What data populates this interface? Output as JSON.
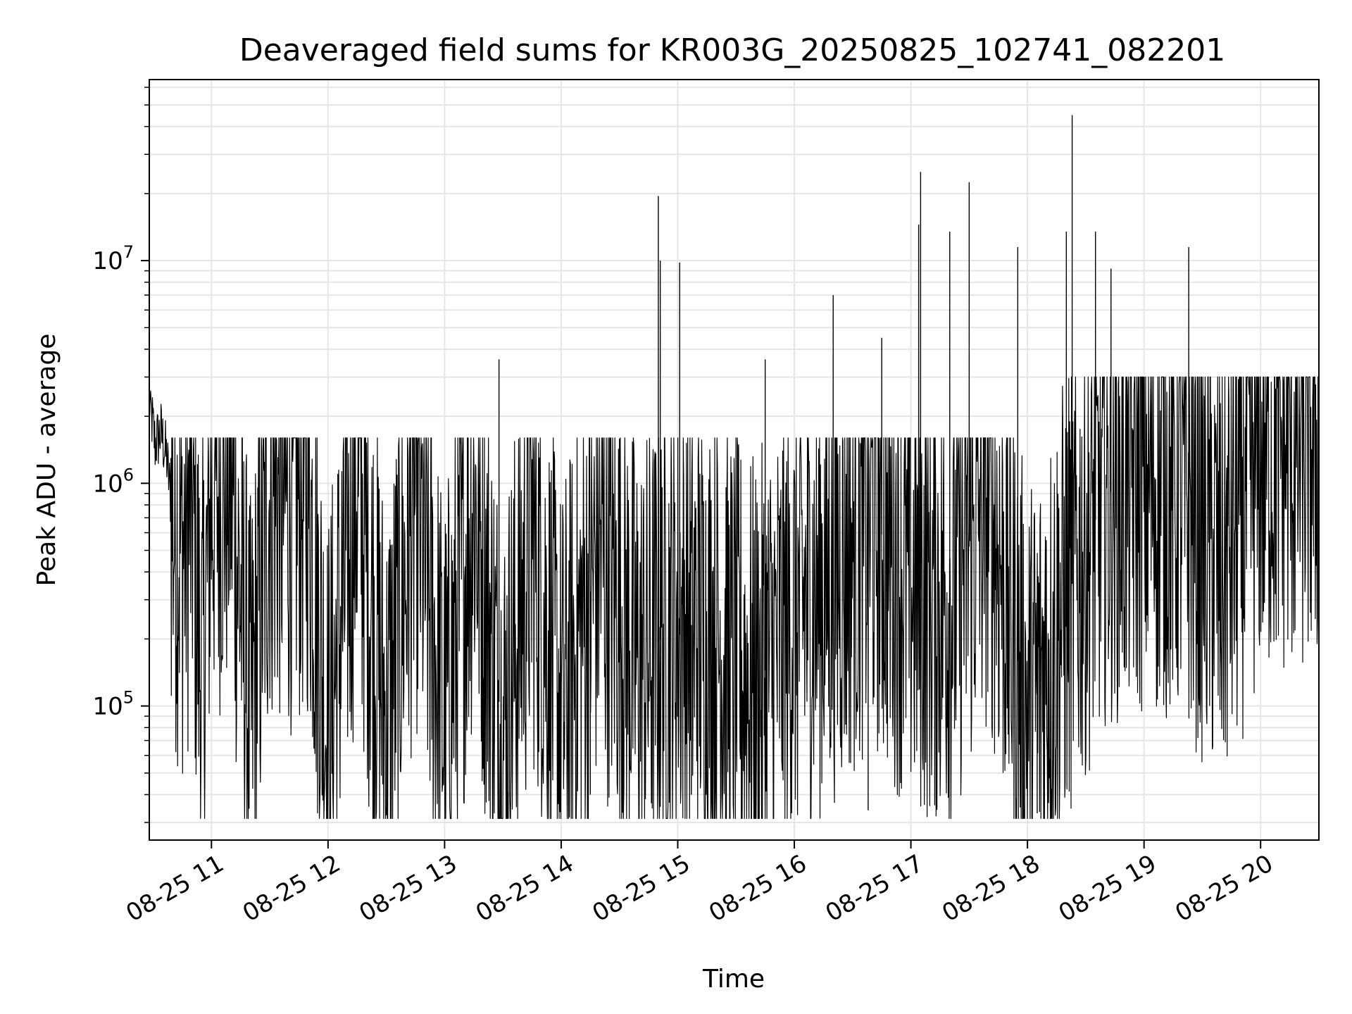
{
  "chart_data": {
    "type": "line",
    "title": "Deaveraged field sums for KR003G_20250825_102741_082201",
    "xlabel": "Time",
    "ylabel": "Peak ADU - average",
    "yscale": "log",
    "ylim": [
      25000,
      65000000
    ],
    "xlim": [
      "2025-08-25T10:28",
      "2025-08-25T20:30"
    ],
    "grid": true,
    "line_color": "#000000",
    "x_ticks": [
      {
        "x": "2025-08-25T11:00",
        "label": "08-25 11"
      },
      {
        "x": "2025-08-25T12:00",
        "label": "08-25 12"
      },
      {
        "x": "2025-08-25T13:00",
        "label": "08-25 13"
      },
      {
        "x": "2025-08-25T14:00",
        "label": "08-25 14"
      },
      {
        "x": "2025-08-25T15:00",
        "label": "08-25 15"
      },
      {
        "x": "2025-08-25T16:00",
        "label": "08-25 16"
      },
      {
        "x": "2025-08-25T17:00",
        "label": "08-25 17"
      },
      {
        "x": "2025-08-25T18:00",
        "label": "08-25 18"
      },
      {
        "x": "2025-08-25T19:00",
        "label": "08-25 19"
      },
      {
        "x": "2025-08-25T20:00",
        "label": "08-25 20"
      }
    ],
    "y_ticks": [
      {
        "value": 100000,
        "base": "10",
        "exp": "5"
      },
      {
        "value": 1000000,
        "base": "10",
        "exp": "6"
      },
      {
        "value": 10000000,
        "base": "10",
        "exp": "7"
      }
    ],
    "series": [
      {
        "values": [
          [
            "2025-08-25T10:28",
            2400000
          ],
          [
            "2025-08-25T10:31",
            1500000
          ],
          [
            "2025-08-25T10:34",
            1700000
          ],
          [
            "2025-08-25T10:37",
            1300000
          ],
          [
            "2025-08-25T10:40",
            700000
          ],
          [
            "2025-08-25T10:45",
            500000
          ],
          [
            "2025-08-25T10:50",
            800000
          ],
          [
            "2025-08-25T10:55",
            120000
          ],
          [
            "2025-08-25T11:00",
            900000
          ],
          [
            "2025-08-25T11:10",
            1100000
          ],
          [
            "2025-08-25T11:20",
            80000
          ],
          [
            "2025-08-25T11:30",
            900000
          ],
          [
            "2025-08-25T11:40",
            800000
          ],
          [
            "2025-08-25T11:50",
            950000
          ],
          [
            "2025-08-25T12:00",
            70000
          ],
          [
            "2025-08-25T12:15",
            1100000
          ],
          [
            "2025-08-25T12:30",
            80000
          ],
          [
            "2025-08-25T12:45",
            900000
          ],
          [
            "2025-08-25T13:00",
            80000
          ],
          [
            "2025-08-25T13:15",
            900000
          ],
          [
            "2025-08-25T13:30",
            75000
          ],
          [
            "2025-08-25T13:45",
            600000
          ],
          [
            "2025-08-25T14:00",
            90000
          ],
          [
            "2025-08-25T14:20",
            500000
          ],
          [
            "2025-08-25T14:40",
            150000
          ],
          [
            "2025-08-25T15:00",
            250000
          ],
          [
            "2025-08-25T15:20",
            200000
          ],
          [
            "2025-08-25T15:40",
            120000
          ],
          [
            "2025-08-25T16:00",
            250000
          ],
          [
            "2025-08-25T16:20",
            400000
          ],
          [
            "2025-08-25T16:40",
            700000
          ],
          [
            "2025-08-25T17:00",
            350000
          ],
          [
            "2025-08-25T17:20",
            300000
          ],
          [
            "2025-08-25T17:40",
            900000
          ],
          [
            "2025-08-25T18:00",
            90000
          ],
          [
            "2025-08-25T18:20",
            300000
          ],
          [
            "2025-08-25T18:40",
            900000
          ],
          [
            "2025-08-25T19:00",
            1000000
          ],
          [
            "2025-08-25T19:20",
            900000
          ],
          [
            "2025-08-25T19:40",
            400000
          ],
          [
            "2025-08-25T20:00",
            1400000
          ],
          [
            "2025-08-25T20:30",
            1500000
          ]
        ],
        "spikes": [
          [
            "2025-08-25T13:28",
            3600000
          ],
          [
            "2025-08-25T14:50",
            19500000
          ],
          [
            "2025-08-25T14:51",
            10000000
          ],
          [
            "2025-08-25T15:01",
            9800000
          ],
          [
            "2025-08-25T16:20",
            7000000
          ],
          [
            "2025-08-25T17:05",
            25000000
          ],
          [
            "2025-08-25T17:04",
            14500000
          ],
          [
            "2025-08-25T17:30",
            22500000
          ],
          [
            "2025-08-25T17:20",
            13500000
          ],
          [
            "2025-08-25T17:55",
            11500000
          ],
          [
            "2025-08-25T18:23",
            45000000
          ],
          [
            "2025-08-25T18:20",
            13500000
          ],
          [
            "2025-08-25T18:35",
            13500000
          ],
          [
            "2025-08-25T18:43",
            9200000
          ],
          [
            "2025-08-25T19:23",
            11500000
          ],
          [
            "2025-08-25T15:45",
            3600000
          ],
          [
            "2025-08-25T16:45",
            4500000
          ],
          [
            "2025-08-25T16:38",
            34000
          ],
          [
            "2025-08-25T18:05",
            33000
          ],
          [
            "2025-08-25T14:15",
            40000
          ],
          [
            "2025-08-25T15:07",
            40000
          ]
        ]
      }
    ]
  }
}
